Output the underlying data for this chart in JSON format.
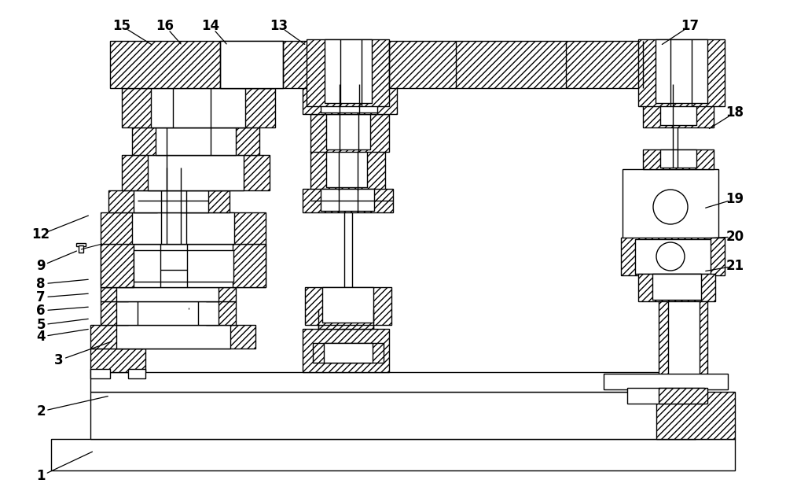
{
  "figsize": [
    10.0,
    6.33
  ],
  "dpi": 100,
  "bg": "#ffffff",
  "lw": 1.0,
  "labels": [
    [
      1,
      52,
      28,
      120,
      60
    ],
    [
      2,
      52,
      110,
      140,
      130
    ],
    [
      3,
      75,
      175,
      145,
      200
    ],
    [
      4,
      52,
      205,
      115,
      215
    ],
    [
      5,
      52,
      220,
      115,
      228
    ],
    [
      6,
      52,
      238,
      115,
      243
    ],
    [
      7,
      52,
      255,
      115,
      260
    ],
    [
      8,
      52,
      272,
      115,
      278
    ],
    [
      9,
      52,
      295,
      100,
      315
    ],
    [
      12,
      52,
      335,
      115,
      360
    ],
    [
      13,
      355,
      600,
      390,
      575
    ],
    [
      14,
      268,
      600,
      290,
      575
    ],
    [
      15,
      155,
      600,
      195,
      575
    ],
    [
      16,
      210,
      600,
      232,
      575
    ],
    [
      17,
      878,
      600,
      840,
      575
    ],
    [
      18,
      935,
      490,
      900,
      468
    ],
    [
      19,
      935,
      380,
      895,
      368
    ],
    [
      20,
      935,
      332,
      895,
      330
    ],
    [
      21,
      935,
      295,
      895,
      288
    ]
  ]
}
